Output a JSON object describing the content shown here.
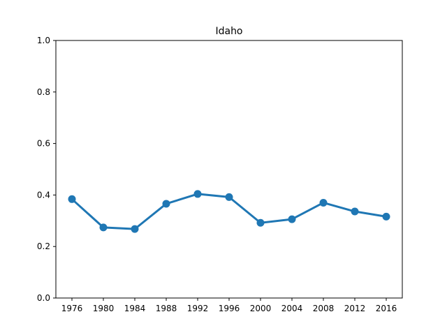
{
  "chart_data": {
    "type": "line",
    "title": "Idaho",
    "xlabel": "",
    "ylabel": "",
    "categories": [
      "1976",
      "1980",
      "1984",
      "1988",
      "1992",
      "1996",
      "2000",
      "2004",
      "2008",
      "2012",
      "2016"
    ],
    "series": [
      {
        "values": [
          0.384,
          0.274,
          0.268,
          0.366,
          0.404,
          0.392,
          0.292,
          0.306,
          0.37,
          0.336,
          0.316
        ],
        "color": "#1f77b4"
      }
    ],
    "ylim": [
      0.0,
      1.0
    ],
    "yticks": [
      "0.0",
      "0.2",
      "0.4",
      "0.6",
      "0.8",
      "1.0"
    ],
    "grid": false,
    "legend": "none"
  }
}
